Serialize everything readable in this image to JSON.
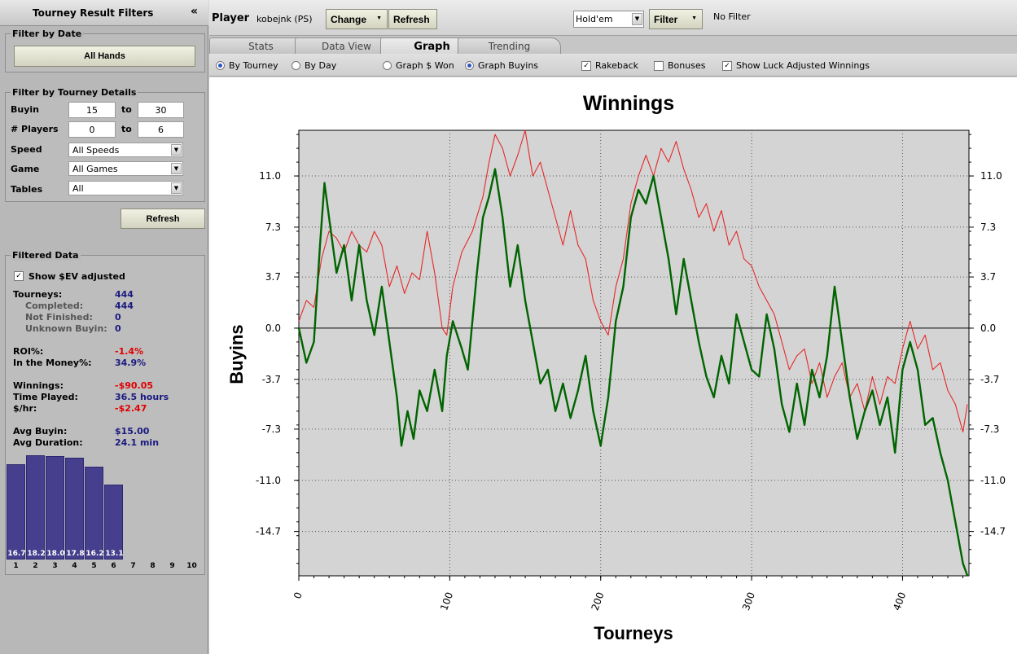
{
  "sidebar": {
    "title": "Tourney Result Filters",
    "collapse_glyph": "«",
    "date_group": {
      "title": "Filter by Date",
      "button": "All Hands"
    },
    "details_group": {
      "title": "Filter by Tourney Details",
      "buyin_label": "Buyin",
      "buyin_from": "15",
      "buyin_to": "30",
      "players_label": "# Players",
      "players_from": "0",
      "players_to": "6",
      "to_label": "to",
      "speed_label": "Speed",
      "speed_value": "All Speeds",
      "game_label": "Game",
      "game_value": "All Games",
      "tables_label": "Tables",
      "tables_value": "All"
    },
    "refresh_button": "Refresh",
    "filtered": {
      "title": "Filtered Data",
      "show_ev_label": "Show $EV adjusted",
      "show_ev_checked": true,
      "tourneys_label": "Tourneys:",
      "tourneys": "444",
      "completed_label": "Completed:",
      "completed": "444",
      "not_finished_label": "Not Finished:",
      "not_finished": "0",
      "unknown_buyin_label": "Unknown Buyin:",
      "unknown_buyin": "0",
      "roi_label": "ROI%:",
      "roi": "-1.4%",
      "itm_label": "In the Money%:",
      "itm": "34.9%",
      "winnings_label": "Winnings:",
      "winnings": "-$90.05",
      "time_played_label": "Time Played:",
      "time_played": "36.5 hours",
      "per_hour_label": "$/hr:",
      "per_hour": "-$2.47",
      "avg_buyin_label": "Avg Buyin:",
      "avg_buyin": "$15.00",
      "avg_duration_label": "Avg Duration:",
      "avg_duration": "24.1 min"
    },
    "finish_histogram": {
      "positions": [
        "1",
        "2",
        "3",
        "4",
        "5",
        "6",
        "7",
        "8",
        "9",
        "10"
      ],
      "values": [
        16.7,
        18.2,
        18.0,
        17.8,
        16.2,
        13.1,
        null,
        null,
        null,
        null
      ],
      "labels": [
        "16.7",
        "18.2",
        "18.0",
        "17.8",
        "16.2",
        "13.1",
        "",
        "",
        "",
        ""
      ],
      "bar_color": "#463f8d"
    }
  },
  "toolbar": {
    "player_label": "Player",
    "player_name": "kobejnk (PS)",
    "change_button": "Change",
    "refresh_button": "Refresh",
    "game_select": "Hold'em",
    "filter_button": "Filter",
    "filter_status": "No Filter"
  },
  "tabs": [
    {
      "label": "Stats",
      "active": false
    },
    {
      "label": "Data View",
      "active": false
    },
    {
      "label": "Graph",
      "active": true
    },
    {
      "label": "Trending",
      "active": false
    }
  ],
  "options": {
    "by_tourney": "By Tourney",
    "by_tourney_selected": true,
    "by_day": "By Day",
    "by_day_selected": false,
    "graph_won": "Graph $ Won",
    "graph_won_selected": false,
    "graph_buyins": "Graph Buyins",
    "graph_buyins_selected": true,
    "rakeback": "Rakeback",
    "rakeback_checked": true,
    "bonuses": "Bonuses",
    "bonuses_checked": false,
    "luck_adjusted": "Show Luck Adjusted Winnings",
    "luck_adjusted_checked": true
  },
  "chart_data": {
    "type": "line",
    "title": "Winnings",
    "xlabel": "Tourneys",
    "ylabel": "Buyins",
    "xlim": [
      0,
      444
    ],
    "ylim": [
      -17.9,
      14.3
    ],
    "x_ticks": [
      0,
      100,
      200,
      300,
      400
    ],
    "y_ticks": [
      11.0,
      7.3,
      3.7,
      0.0,
      -3.7,
      -7.3,
      -11.0,
      -14.7
    ],
    "y_tick_labels": [
      "11.0",
      "7.3",
      "3.7",
      "0.0",
      "-3.7",
      "-7.3",
      "-11.0",
      "-14.7"
    ],
    "grid": true,
    "plot_background": "#d4d4d4",
    "series": [
      {
        "color": "#006400",
        "points": [
          [
            0,
            0
          ],
          [
            5,
            -2.5
          ],
          [
            10,
            -1
          ],
          [
            14,
            6
          ],
          [
            17,
            10.5
          ],
          [
            20,
            8
          ],
          [
            25,
            4
          ],
          [
            30,
            6
          ],
          [
            35,
            2
          ],
          [
            40,
            6
          ],
          [
            45,
            2
          ],
          [
            50,
            -0.5
          ],
          [
            55,
            3
          ],
          [
            60,
            -1
          ],
          [
            65,
            -5
          ],
          [
            68,
            -8.5
          ],
          [
            72,
            -6
          ],
          [
            76,
            -8
          ],
          [
            80,
            -4.5
          ],
          [
            85,
            -6
          ],
          [
            90,
            -3
          ],
          [
            95,
            -6
          ],
          [
            98,
            -2
          ],
          [
            102,
            0.5
          ],
          [
            108,
            -1.5
          ],
          [
            112,
            -3
          ],
          [
            118,
            4
          ],
          [
            122,
            8
          ],
          [
            126,
            9.5
          ],
          [
            130,
            11.5
          ],
          [
            135,
            8
          ],
          [
            140,
            3
          ],
          [
            145,
            6
          ],
          [
            150,
            2
          ],
          [
            155,
            -1
          ],
          [
            160,
            -4
          ],
          [
            165,
            -3
          ],
          [
            170,
            -6
          ],
          [
            175,
            -4
          ],
          [
            180,
            -6.5
          ],
          [
            185,
            -4.5
          ],
          [
            190,
            -2
          ],
          [
            195,
            -6
          ],
          [
            200,
            -8.5
          ],
          [
            205,
            -5
          ],
          [
            210,
            0.5
          ],
          [
            215,
            3
          ],
          [
            220,
            8
          ],
          [
            225,
            10
          ],
          [
            230,
            9
          ],
          [
            235,
            11
          ],
          [
            240,
            8
          ],
          [
            245,
            5
          ],
          [
            250,
            1
          ],
          [
            255,
            5
          ],
          [
            260,
            2
          ],
          [
            265,
            -1
          ],
          [
            270,
            -3.5
          ],
          [
            275,
            -5
          ],
          [
            280,
            -2
          ],
          [
            285,
            -4
          ],
          [
            290,
            1
          ],
          [
            295,
            -1
          ],
          [
            300,
            -3
          ],
          [
            305,
            -3.5
          ],
          [
            310,
            1
          ],
          [
            315,
            -1.5
          ],
          [
            320,
            -5.5
          ],
          [
            325,
            -7.5
          ],
          [
            330,
            -4
          ],
          [
            335,
            -7
          ],
          [
            340,
            -3
          ],
          [
            345,
            -5
          ],
          [
            350,
            -2
          ],
          [
            355,
            3
          ],
          [
            360,
            -1
          ],
          [
            365,
            -5
          ],
          [
            370,
            -8
          ],
          [
            375,
            -6
          ],
          [
            380,
            -4.5
          ],
          [
            385,
            -7
          ],
          [
            390,
            -5
          ],
          [
            395,
            -9
          ],
          [
            400,
            -3
          ],
          [
            405,
            -1
          ],
          [
            410,
            -3
          ],
          [
            415,
            -7
          ],
          [
            420,
            -6.5
          ],
          [
            425,
            -9
          ],
          [
            430,
            -11
          ],
          [
            435,
            -14
          ],
          [
            440,
            -17
          ],
          [
            443,
            -17.9
          ]
        ]
      },
      {
        "color": "#e62828",
        "points": [
          [
            0,
            0.5
          ],
          [
            5,
            2
          ],
          [
            10,
            1.5
          ],
          [
            15,
            5
          ],
          [
            20,
            7
          ],
          [
            25,
            6.5
          ],
          [
            30,
            5.5
          ],
          [
            35,
            7
          ],
          [
            40,
            6
          ],
          [
            45,
            5.5
          ],
          [
            50,
            7
          ],
          [
            55,
            6
          ],
          [
            60,
            3
          ],
          [
            65,
            4.5
          ],
          [
            70,
            2.5
          ],
          [
            75,
            4
          ],
          [
            80,
            3.5
          ],
          [
            85,
            7
          ],
          [
            90,
            4
          ],
          [
            95,
            0
          ],
          [
            98,
            -0.5
          ],
          [
            102,
            3
          ],
          [
            108,
            5.5
          ],
          [
            115,
            7
          ],
          [
            122,
            9.5
          ],
          [
            126,
            12
          ],
          [
            130,
            14
          ],
          [
            135,
            13
          ],
          [
            140,
            11
          ],
          [
            145,
            12.5
          ],
          [
            150,
            14.3
          ],
          [
            155,
            11
          ],
          [
            160,
            12
          ],
          [
            165,
            10
          ],
          [
            170,
            8
          ],
          [
            175,
            6
          ],
          [
            180,
            8.5
          ],
          [
            185,
            6
          ],
          [
            190,
            5
          ],
          [
            195,
            2
          ],
          [
            200,
            0.5
          ],
          [
            205,
            -0.5
          ],
          [
            210,
            3
          ],
          [
            215,
            5
          ],
          [
            220,
            9
          ],
          [
            225,
            11
          ],
          [
            230,
            12.5
          ],
          [
            235,
            11
          ],
          [
            240,
            13
          ],
          [
            245,
            12
          ],
          [
            250,
            13.5
          ],
          [
            255,
            11.5
          ],
          [
            260,
            10
          ],
          [
            265,
            8
          ],
          [
            270,
            9
          ],
          [
            275,
            7
          ],
          [
            280,
            8.5
          ],
          [
            285,
            6
          ],
          [
            290,
            7
          ],
          [
            295,
            5
          ],
          [
            300,
            4.5
          ],
          [
            305,
            3
          ],
          [
            310,
            2
          ],
          [
            315,
            1
          ],
          [
            320,
            -1
          ],
          [
            325,
            -3
          ],
          [
            330,
            -2
          ],
          [
            335,
            -1.5
          ],
          [
            340,
            -4
          ],
          [
            345,
            -2.5
          ],
          [
            350,
            -5
          ],
          [
            355,
            -3.5
          ],
          [
            360,
            -2.5
          ],
          [
            365,
            -5
          ],
          [
            370,
            -4
          ],
          [
            375,
            -6
          ],
          [
            380,
            -3.5
          ],
          [
            385,
            -5.5
          ],
          [
            390,
            -3.5
          ],
          [
            395,
            -4
          ],
          [
            400,
            -1.5
          ],
          [
            405,
            0.5
          ],
          [
            410,
            -1.5
          ],
          [
            415,
            -0.5
          ],
          [
            420,
            -3
          ],
          [
            425,
            -2.5
          ],
          [
            430,
            -4.5
          ],
          [
            435,
            -5.5
          ],
          [
            440,
            -7.5
          ],
          [
            443,
            -5.5
          ]
        ]
      }
    ]
  }
}
